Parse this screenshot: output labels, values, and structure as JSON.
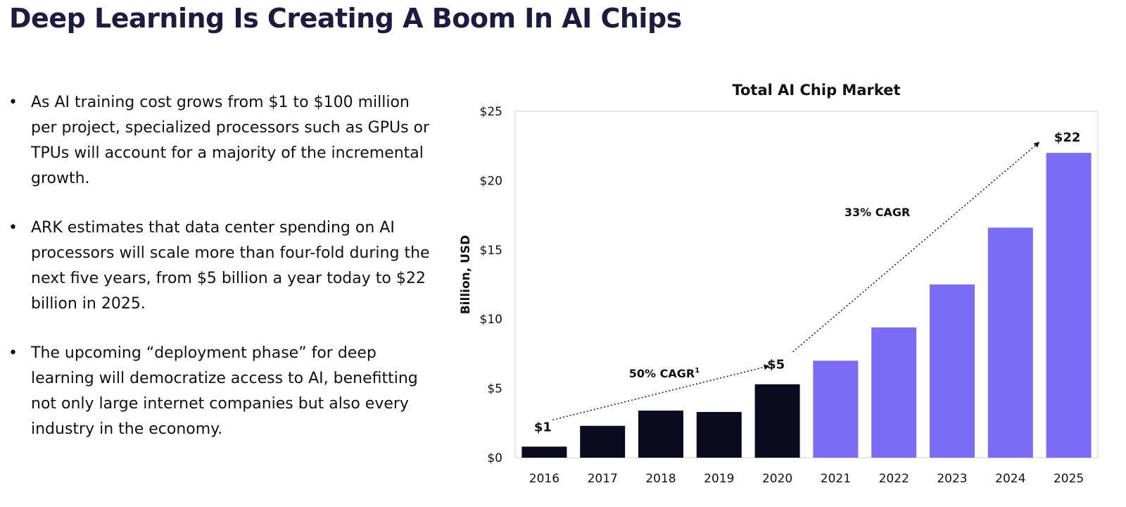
{
  "page": {
    "title": "Deep Learning Is Creating A Boom In AI Chips",
    "bullets": [
      "As AI training cost grows from $1 to $100 million per project, specialized processors such as GPUs or TPUs will account for a majority of the incremental growth.",
      "ARK estimates that data center spending on AI processors will scale more than four-fold during the next five years, from $5 billion a year today to $22 billion in 2025.",
      "The upcoming “deployment phase” for deep learning will democratize access to AI, benefitting not only large internet companies but also every industry in the economy."
    ],
    "bullet_symbol": "•"
  },
  "colors": {
    "historical": "#0b0b1f",
    "forecast": "#7b6cf6",
    "title": "#1b1c3f"
  },
  "chart_data": {
    "type": "bar",
    "title": "Total AI Chip Market",
    "ylabel": "Billion, USD",
    "xlabel": "",
    "ylim": [
      0,
      25
    ],
    "yticks": [
      0,
      5,
      10,
      15,
      20,
      25
    ],
    "ytick_labels": [
      "$0",
      "$5",
      "$10",
      "$15",
      "$20",
      "$25"
    ],
    "categories": [
      "2016",
      "2017",
      "2018",
      "2019",
      "2020",
      "2021",
      "2022",
      "2023",
      "2024",
      "2025"
    ],
    "values": [
      0.8,
      2.3,
      3.4,
      3.3,
      5.3,
      7.0,
      9.4,
      12.5,
      16.6,
      22.0
    ],
    "series_type": [
      "historical",
      "historical",
      "historical",
      "historical",
      "historical",
      "forecast",
      "forecast",
      "forecast",
      "forecast",
      "forecast"
    ],
    "data_labels": [
      {
        "category": "2016",
        "text": "$1"
      },
      {
        "category": "2020",
        "text": "$5"
      },
      {
        "category": "2025",
        "text": "$22"
      }
    ],
    "annotations": [
      {
        "text": "50% CAGR",
        "superscript": "1",
        "from_category": "2016",
        "to_category": "2020"
      },
      {
        "text": "33% CAGR",
        "superscript": "",
        "from_category": "2020",
        "to_category": "2025"
      }
    ]
  }
}
